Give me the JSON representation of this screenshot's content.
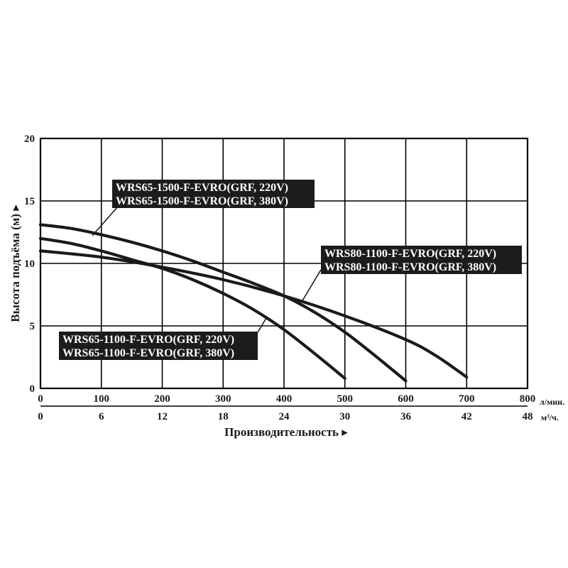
{
  "chart_data": {
    "type": "line",
    "title": "",
    "ylabel": "Высота подъёма (м) ▸",
    "xlabel": "Производительность ▸",
    "x_unit": "л/мин.",
    "x2_unit": "м³/ч.",
    "xlim": [
      0,
      800
    ],
    "ylim": [
      0,
      20
    ],
    "x_ticks": [
      0,
      100,
      200,
      300,
      400,
      500,
      600,
      700,
      800
    ],
    "x2_ticks": [
      0,
      6,
      12,
      18,
      24,
      30,
      36,
      42,
      48
    ],
    "y_ticks": [
      0,
      5,
      10,
      15,
      20
    ],
    "grid": true,
    "series": [
      {
        "name": "WRS65-1100-F-EVRO(GRF, 220V) / WRS65-1100-F-EVRO(GRF, 380V)",
        "points": [
          [
            0,
            12.0
          ],
          [
            50,
            11.6
          ],
          [
            100,
            11.0
          ],
          [
            150,
            10.3
          ],
          [
            200,
            9.6
          ],
          [
            250,
            8.7
          ],
          [
            300,
            7.6
          ],
          [
            350,
            6.3
          ],
          [
            400,
            4.7
          ],
          [
            450,
            2.8
          ],
          [
            500,
            0.8
          ]
        ]
      },
      {
        "name": "WRS65-1500-F-EVRO(GRF, 220V) / WRS65-1500-F-EVRO(GRF, 380V)",
        "points": [
          [
            0,
            13.1
          ],
          [
            50,
            12.8
          ],
          [
            100,
            12.3
          ],
          [
            150,
            11.7
          ],
          [
            200,
            11.0
          ],
          [
            250,
            10.2
          ],
          [
            300,
            9.3
          ],
          [
            350,
            8.4
          ],
          [
            400,
            7.4
          ],
          [
            450,
            6.1
          ],
          [
            500,
            4.5
          ],
          [
            550,
            2.6
          ],
          [
            600,
            0.6
          ]
        ]
      },
      {
        "name": "WRS80-1100-F-EVRO(GRF, 220V) / WRS80-1100-F-EVRO(GRF, 380V)",
        "points": [
          [
            0,
            11.0
          ],
          [
            100,
            10.5
          ],
          [
            200,
            9.7
          ],
          [
            300,
            8.7
          ],
          [
            400,
            7.4
          ],
          [
            500,
            5.8
          ],
          [
            600,
            3.9
          ],
          [
            650,
            2.6
          ],
          [
            700,
            0.9
          ]
        ]
      }
    ],
    "labels": [
      {
        "lines": [
          "WRS65-1500-F-EVRO(GRF, 220V)",
          "WRS65-1500-F-EVRO(GRF, 380V)"
        ]
      },
      {
        "lines": [
          "WRS80-1100-F-EVRO(GRF, 220V)",
          "WRS80-1100-F-EVRO(GRF, 380V)"
        ]
      },
      {
        "lines": [
          "WRS65-1100-F-EVRO(GRF, 220V)",
          "WRS65-1100-F-EVRO(GRF, 380V)"
        ]
      }
    ]
  }
}
